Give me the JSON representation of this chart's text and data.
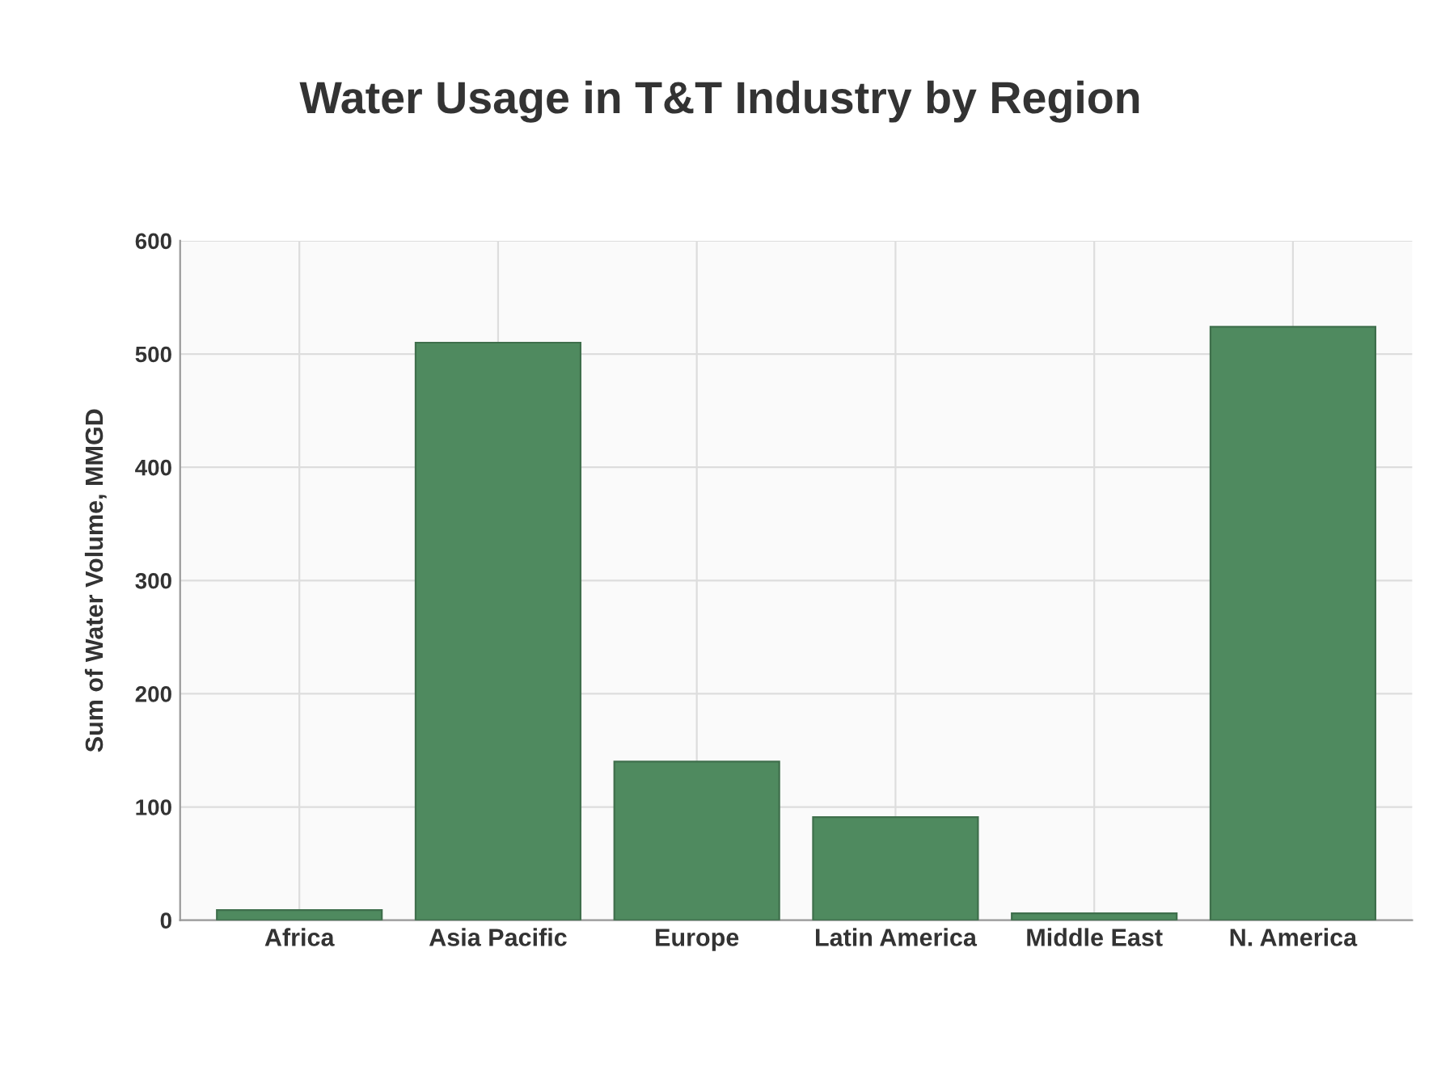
{
  "chart_data": {
    "type": "bar",
    "title": "Water Usage in T&T Industry by Region",
    "ylabel": "Sum of Water Volume, MMGD",
    "categories": [
      "Africa",
      "Asia Pacific",
      "Europe",
      "Latin America",
      "Middle East",
      "N. America"
    ],
    "values": [
      9,
      510,
      140,
      91,
      6,
      524
    ],
    "color": "#4f8a5f",
    "ylim": [
      0,
      600
    ],
    "yticks": [
      0,
      100,
      200,
      300,
      400,
      500,
      600
    ],
    "grid": true
  }
}
